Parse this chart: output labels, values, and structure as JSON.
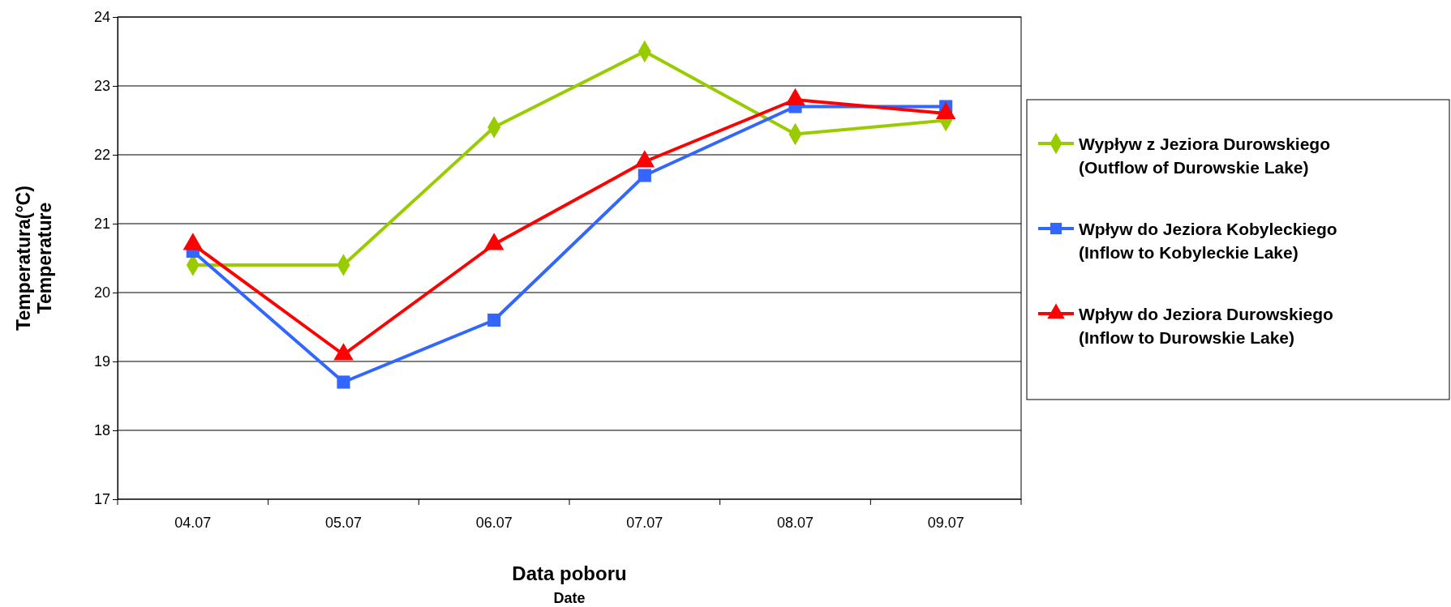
{
  "chart_data": {
    "type": "line",
    "xlabel": "Data poboru\nDate",
    "ylabel": "Temperatura(°C)\nTemperature",
    "categories": [
      "04.07",
      "05.07",
      "06.07",
      "07.07",
      "08.07",
      "09.07"
    ],
    "series": [
      {
        "name": "Wypływ z Jeziora Durowskiego\n(Outflow of Durowskie Lake)",
        "color": "#99cc00",
        "marker": "diamond",
        "values": [
          20.4,
          20.4,
          22.4,
          23.5,
          22.3,
          22.5
        ]
      },
      {
        "name": "Wpływ do Jeziora Kobyleckiego\n(Inflow to Kobyleckie Lake)",
        "color": "#3366ff",
        "marker": "square",
        "values": [
          20.6,
          18.7,
          19.6,
          21.7,
          22.7,
          22.7
        ]
      },
      {
        "name": "Wpływ do Jeziora Durowskiego\n(Inflow to Durowskie Lake)",
        "color": "#ff0000",
        "marker": "triangle",
        "values": [
          20.7,
          19.1,
          20.7,
          21.9,
          22.8,
          22.6
        ]
      }
    ],
    "ylim": [
      17,
      24
    ],
    "yticks": [
      17,
      18,
      19,
      20,
      21,
      22,
      23,
      24
    ],
    "grid": "y",
    "legend": "right",
    "line_style": "solid"
  }
}
